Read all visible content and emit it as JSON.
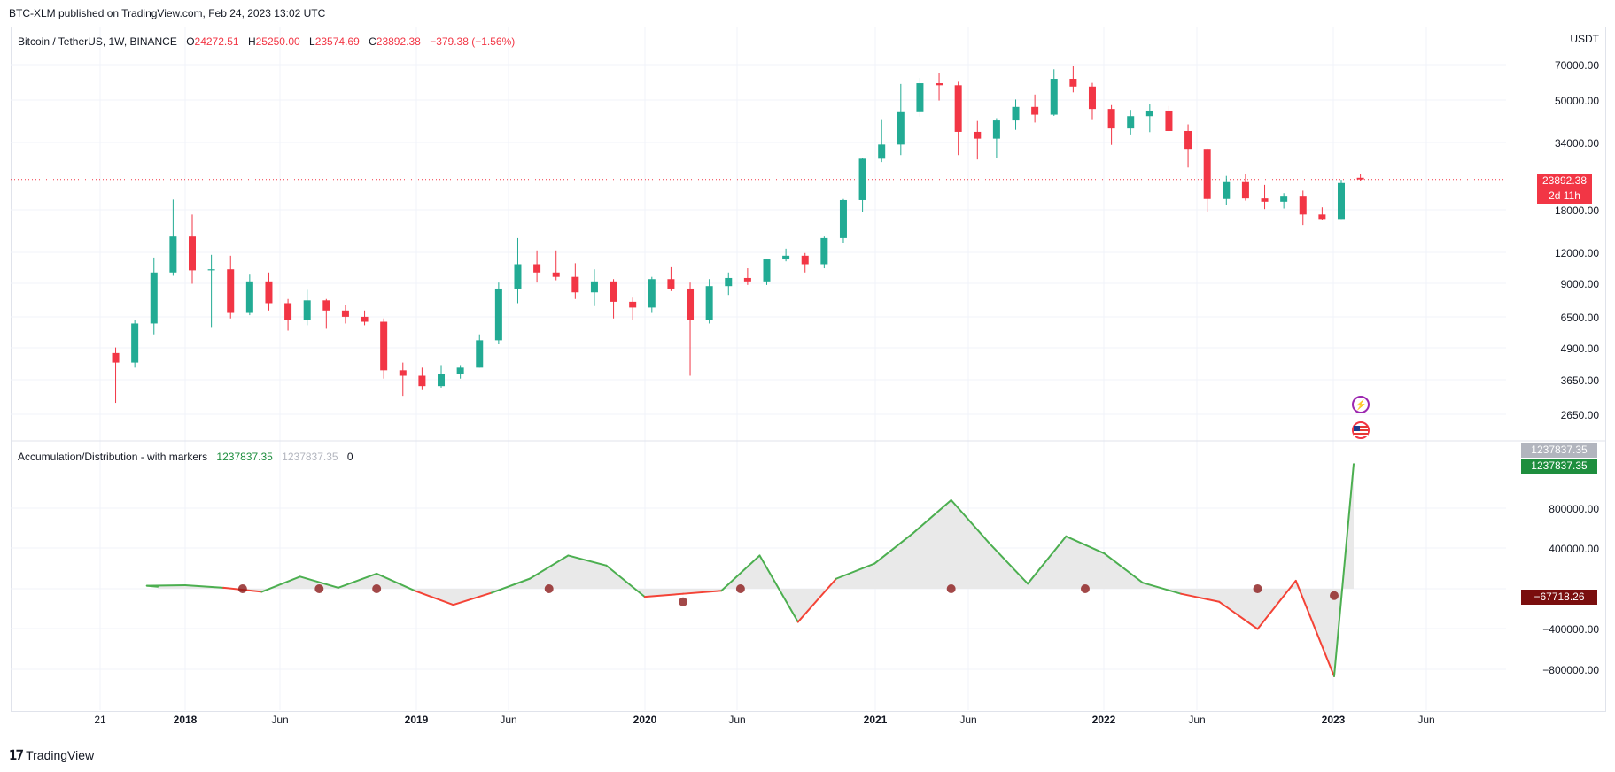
{
  "publish_line": "BTC-XLM published on TradingView.com, Feb 24, 2023 13:02 UTC",
  "main_legend": {
    "symbol": "Bitcoin / TetherUS, 1W, BINANCE",
    "o_label": "O",
    "o_value": "24272.51",
    "h_label": "H",
    "h_value": "25250.00",
    "l_label": "L",
    "l_value": "23574.69",
    "c_label": "C",
    "c_value": "23892.38",
    "change": "−379.38 (−1.56%)"
  },
  "indicator_legend": {
    "name": "Accumulation/Distribution - with markers",
    "value_green": "1237837.35",
    "value_grey": "1237837.35",
    "value_zero": "0"
  },
  "price_axis": {
    "unit": "USDT",
    "labels": [
      "70000.00",
      "50000.00",
      "34000.00",
      "18000.00",
      "12000.00",
      "9000.00",
      "6500.00",
      "4900.00",
      "3650.00",
      "2650.00"
    ]
  },
  "price_tag": {
    "value": "23892.38",
    "countdown": "2d 11h"
  },
  "indicator_axis": {
    "labels": [
      "800000.00",
      "400000.00",
      "0.00",
      "−400000.00",
      "−800000.00"
    ]
  },
  "indicator_tags": {
    "grey": "1237837.35",
    "green": "1237837.35",
    "signal": "−67718.26"
  },
  "time_axis": [
    {
      "label": "21",
      "bold": false
    },
    {
      "label": "2018",
      "bold": true
    },
    {
      "label": "Jun",
      "bold": false
    },
    {
      "label": "2019",
      "bold": true
    },
    {
      "label": "Jun",
      "bold": false
    },
    {
      "label": "2020",
      "bold": true
    },
    {
      "label": "Jun",
      "bold": false
    },
    {
      "label": "2021",
      "bold": true
    },
    {
      "label": "Jun",
      "bold": false
    },
    {
      "label": "2022",
      "bold": true
    },
    {
      "label": "Jun",
      "bold": false
    },
    {
      "label": "2023",
      "bold": true
    },
    {
      "label": "Jun",
      "bold": false
    }
  ],
  "branding": "TradingView",
  "colors": {
    "up": "#22ab94",
    "down": "#f23645",
    "ad_line_up": "#4caf50",
    "ad_line_down": "#f44336",
    "marker": "#8b1a1a",
    "fill": "#e9e9e9"
  },
  "chart_data": [
    {
      "type": "candlestick",
      "title": "Bitcoin / TetherUS, 1W, BINANCE",
      "ylabel": "USDT",
      "y_scale": "log",
      "ylim": [
        2300,
        85000
      ],
      "x": [
        "2017-09",
        "2017-10",
        "2017-11",
        "2017-12",
        "2018-01",
        "2018-02",
        "2018-03",
        "2018-04",
        "2018-05",
        "2018-06",
        "2018-07",
        "2018-08",
        "2018-09",
        "2018-10",
        "2018-11",
        "2018-12",
        "2019-01",
        "2019-02",
        "2019-03",
        "2019-04",
        "2019-05",
        "2019-06",
        "2019-07",
        "2019-08",
        "2019-09",
        "2019-10",
        "2019-11",
        "2019-12",
        "2020-01",
        "2020-02",
        "2020-03",
        "2020-04",
        "2020-05",
        "2020-06",
        "2020-07",
        "2020-08",
        "2020-09",
        "2020-10",
        "2020-11",
        "2020-12",
        "2021-01",
        "2021-02",
        "2021-03",
        "2021-04",
        "2021-05",
        "2021-06",
        "2021-07",
        "2021-08",
        "2021-09",
        "2021-10",
        "2021-11",
        "2021-12",
        "2022-01",
        "2022-02",
        "2022-03",
        "2022-04",
        "2022-05",
        "2022-06",
        "2022-07",
        "2022-08",
        "2022-09",
        "2022-10",
        "2022-11",
        "2022-12",
        "2023-01",
        "2023-02"
      ],
      "close": [
        4300,
        6200,
        10000,
        14000,
        10200,
        10300,
        6900,
        9200,
        7500,
        6400,
        7700,
        7000,
        6600,
        6300,
        4000,
        3800,
        3450,
        3850,
        4100,
        5300,
        8600,
        10800,
        10000,
        9600,
        8300,
        9200,
        7600,
        7200,
        9400,
        8600,
        6400,
        8800,
        9500,
        9200,
        11300,
        11700,
        10800,
        13800,
        19700,
        29000,
        33100,
        45200,
        58800,
        57700,
        37300,
        35000,
        41500,
        47100,
        43800,
        61300,
        57000,
        46200,
        38500,
        43200,
        45500,
        37600,
        31800,
        19900,
        23300,
        20000,
        19400,
        20500,
        17200,
        16500,
        23100,
        23892.38
      ],
      "open": [
        4700,
        4300,
        6200,
        10000,
        14000,
        10200,
        10300,
        6900,
        9200,
        7500,
        6400,
        7700,
        7000,
        6600,
        6300,
        4000,
        3800,
        3450,
        3850,
        4100,
        5300,
        8600,
        10800,
        10000,
        9600,
        8300,
        9200,
        7600,
        7200,
        9400,
        8600,
        6400,
        8800,
        9500,
        9200,
        11300,
        11700,
        10800,
        13800,
        19700,
        29000,
        33100,
        45200,
        58800,
        57700,
        37300,
        35000,
        41500,
        47100,
        43800,
        61300,
        57000,
        46200,
        38500,
        43200,
        45500,
        37600,
        31800,
        19900,
        23300,
        20000,
        19400,
        20500,
        17200,
        16500,
        24272.51
      ],
      "high": [
        4950,
        6400,
        11500,
        19800,
        17200,
        11800,
        11700,
        9800,
        10000,
        7800,
        8500,
        7800,
        7400,
        7000,
        6500,
        4300,
        4100,
        4200,
        4200,
        5600,
        9100,
        13800,
        12300,
        12300,
        10900,
        10300,
        9400,
        7900,
        9600,
        10500,
        9100,
        9400,
        10000,
        10400,
        11400,
        12500,
        12000,
        14000,
        19900,
        29300,
        42000,
        58400,
        61800,
        64800,
        59600,
        41300,
        42400,
        50500,
        52900,
        67000,
        69000,
        59000,
        47900,
        45800,
        48200,
        47500,
        40000,
        31900,
        24700,
        25200,
        22700,
        21000,
        21500,
        18400,
        23800,
        25250.0
      ],
      "low": [
        2950,
        4100,
        5600,
        9700,
        9000,
        6000,
        6500,
        6700,
        7000,
        5800,
        6100,
        5900,
        6200,
        6100,
        3700,
        3150,
        3350,
        3400,
        3700,
        4100,
        5100,
        7500,
        9100,
        9300,
        7800,
        7300,
        6500,
        6400,
        6900,
        8400,
        3800,
        6200,
        8100,
        8900,
        8900,
        11100,
        10000,
        10400,
        13200,
        17600,
        28100,
        30000,
        43000,
        50000,
        30000,
        28800,
        29300,
        38000,
        40700,
        43300,
        54000,
        42000,
        33000,
        36400,
        37200,
        37500,
        26700,
        17600,
        18800,
        19600,
        18100,
        18200,
        15600,
        16300,
        16500,
        23574.69
      ]
    },
    {
      "type": "line",
      "title": "Accumulation/Distribution - with markers",
      "ylim": [
        -1000000,
        1400000
      ],
      "x": [
        "2017-09",
        "2017-11",
        "2018-01",
        "2018-03",
        "2018-05",
        "2018-07",
        "2018-09",
        "2018-11",
        "2019-01",
        "2019-03",
        "2019-05",
        "2019-07",
        "2019-09",
        "2019-11",
        "2020-01",
        "2020-03",
        "2020-05",
        "2020-07",
        "2020-09",
        "2020-11",
        "2021-01",
        "2021-03",
        "2021-05",
        "2021-07",
        "2021-09",
        "2021-11",
        "2022-01",
        "2022-03",
        "2022-05",
        "2022-07",
        "2022-09",
        "2022-11",
        "2023-01",
        "2023-02"
      ],
      "values": [
        20000,
        30000,
        35000,
        10000,
        -30000,
        120000,
        10000,
        150000,
        -20000,
        -160000,
        -40000,
        100000,
        330000,
        230000,
        -80000,
        -50000,
        -20000,
        330000,
        -330000,
        100000,
        250000,
        550000,
        880000,
        450000,
        50000,
        520000,
        350000,
        60000,
        -50000,
        -130000,
        -400000,
        80000,
        -870000,
        1237837.35
      ],
      "signal_markers_x": [
        "2018-04",
        "2018-08",
        "2018-11",
        "2019-08",
        "2020-03",
        "2020-06",
        "2021-05",
        "2021-12",
        "2022-09",
        "2023-01"
      ],
      "signal_markers_y": [
        0,
        0,
        0,
        0,
        -130000,
        0,
        0,
        0,
        0,
        -67718.26
      ]
    }
  ]
}
